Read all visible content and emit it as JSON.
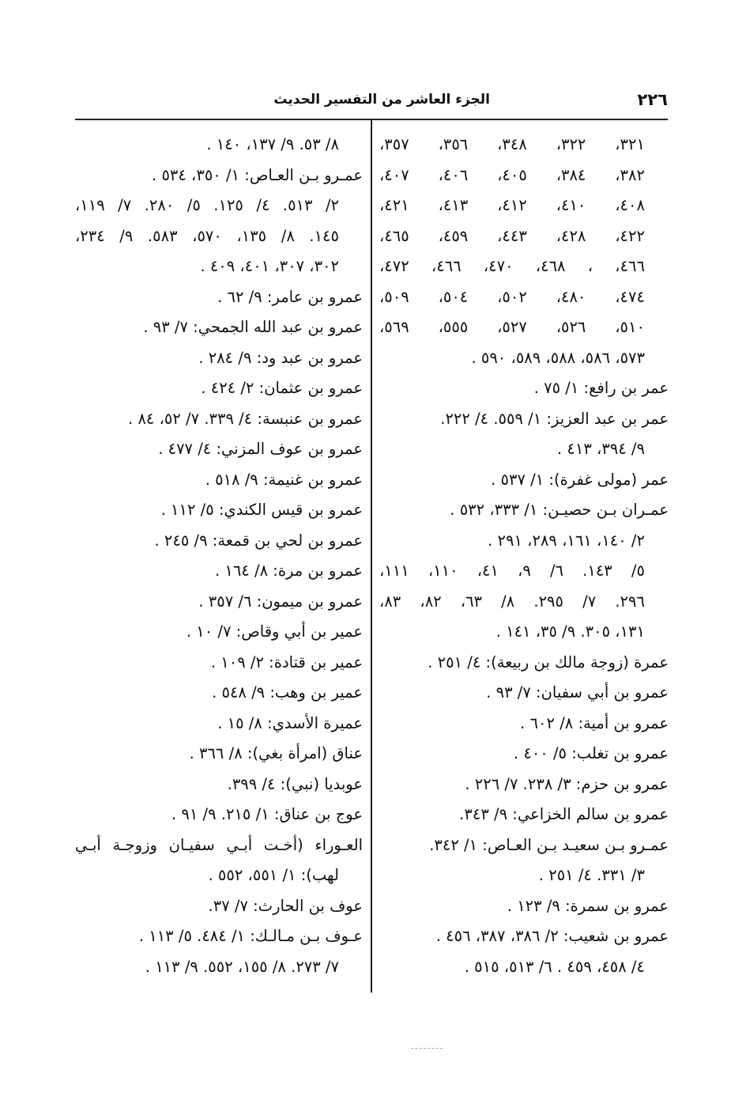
{
  "header": {
    "page_number": "٢٢٦",
    "running_title": "الجزء العاشر من التفسير الحديث"
  },
  "right_column": [
    {
      "text": "٣٢١، ٣٢٢، ٣٤٨، ٣٥٦، ٣٥٧،",
      "type": "continuation"
    },
    {
      "text": "٣٨٢، ٣٨٤، ٤٠٥، ٤٠٦، ٤٠٧،",
      "type": "continuation"
    },
    {
      "text": "٤٠٨، ٤١٠، ٤١٢، ٤١٣، ٤٢١،",
      "type": "continuation"
    },
    {
      "text": "٤٢٢، ٤٢٨، ٤٤٣، ٤٥٩، ٤٦٥،",
      "type": "continuation"
    },
    {
      "text": "٤٦٦، ، ٤٦٨، ٤٧٠، ٤٦٦، ٤٧٢،",
      "type": "continuation"
    },
    {
      "text": "٤٧٤، ٤٨٠، ٥٠٢، ٥٠٤، ٥٠٩،",
      "type": "continuation"
    },
    {
      "text": "٥١٠، ٥٢٦، ٥٢٧، ٥٥٥، ٥٦٩،",
      "type": "continuation"
    },
    {
      "text": "٥٧٣، ٥٨٦، ٥٨٨، ٥٨٩، ٥٩٠ .",
      "type": "continuation"
    },
    {
      "text": "عمر بن رافع: ١/ ٧٥ .",
      "type": "entry"
    },
    {
      "text": "عمر بن عبد العزيز: ١/ ٥٥٩. ٤/ ٢٢٢.",
      "type": "entry"
    },
    {
      "text": "٩/ ٣٩٤، ٤١٣ .",
      "type": "continuation"
    },
    {
      "text": "عمر (مولى غفرة): ١/ ٥٣٧ .",
      "type": "entry"
    },
    {
      "text": "عمـران بـن حصيـن: ١/ ٣٣٣، ٥٣٢ .",
      "type": "entry"
    },
    {
      "text": "٢/ ١٤٠، ١٦١، ٢٨٩، ٢٩١ .",
      "type": "continuation"
    },
    {
      "text": "٥/ ١٤٣. ٦/ ٩، ٤١، ١١٠، ١١١،",
      "type": "continuation"
    },
    {
      "text": "٢٩٦. ٧/ ٢٩٥. ٨/ ٦٣، ٨٢، ٨٣،",
      "type": "continuation"
    },
    {
      "text": "١٣١، ٣٠٥. ٩/ ٣٥، ١٤١ .",
      "type": "continuation"
    },
    {
      "text": "عمرة (زوجة مالك بن ربيعة): ٤/ ٢٥١ .",
      "type": "entry"
    },
    {
      "text": "عمرو بن أبي سفيان: ٧/ ٩٣ .",
      "type": "entry"
    },
    {
      "text": "عمرو بن أمية: ٨/ ٦٠٢ .",
      "type": "entry"
    },
    {
      "text": "عمرو بن تغلب: ٥/ ٤٠٠ .",
      "type": "entry"
    },
    {
      "text": "عمرو بن حزم: ٣/ ٢٣٨. ٧/ ٢٢٦ .",
      "type": "entry"
    },
    {
      "text": "عمرو بن سالم الخزاعي: ٩/ ٣٤٣.",
      "type": "entry"
    },
    {
      "text": "عمـرو بـن سعيـد بـن العـاص: ١/ ٣٤٢.",
      "type": "entry"
    },
    {
      "text": "٣/ ٣٣١. ٤/ ٢٥١ .",
      "type": "continuation"
    },
    {
      "text": "عمرو بن سمرة: ٩/ ١٢٣ .",
      "type": "entry"
    },
    {
      "text": "عمرو بن شعيب: ٢/ ٣٨٦، ٣٨٧، ٤٥٦ .",
      "type": "entry"
    },
    {
      "text": "٤/ ٤٥٨، ٤٥٩ . ٦/ ٥١٣، ٥١٥ .",
      "type": "continuation"
    }
  ],
  "left_column": [
    {
      "text": "٨/ ٥٣. ٩/ ١٣٧، ١٤٠ .",
      "type": "continuation"
    },
    {
      "text": "عمـرو بـن العـاص: ١/ ٣٥٠، ٥٣٤ .",
      "type": "entry"
    },
    {
      "text": "٢/ ٥١٣. ٤/ ١٢٥. ٥/ ٢٨٠. ٧/ ١١٩،",
      "type": "continuation"
    },
    {
      "text": "١٤٥. ٨/ ١٣٥، ٥٧٠، ٥٨٣. ٩/ ٢٣٤،",
      "type": "continuation"
    },
    {
      "text": "٣٠٢، ٣٠٧، ٤٠١، ٤٠٩ .",
      "type": "continuation"
    },
    {
      "text": "عمرو بن عامر: ٩/ ٦٢ .",
      "type": "entry"
    },
    {
      "text": "عمرو بن عبد الله الجمحي: ٧/ ٩٣ .",
      "type": "entry"
    },
    {
      "text": "عمرو بن عبد ود: ٩/ ٢٨٤ .",
      "type": "entry"
    },
    {
      "text": "عمرو بن عثمان: ٢/ ٤٢٤ .",
      "type": "entry"
    },
    {
      "text": "عمرو بن عنبسة: ٤/ ٣٣٩. ٧/ ٥٢، ٨٤ .",
      "type": "entry"
    },
    {
      "text": "عمرو بن عوف المزني: ٤/ ٤٧٧ .",
      "type": "entry"
    },
    {
      "text": "عمرو بن غنيمة: ٩/ ٥١٨ .",
      "type": "entry"
    },
    {
      "text": "عمرو بن قيس الكندي: ٥/ ١١٢ .",
      "type": "entry"
    },
    {
      "text": "عمرو بن لحي بن قمعة: ٩/ ٢٤٥ .",
      "type": "entry"
    },
    {
      "text": "عمرو بن مرة: ٨/ ١٦٤ .",
      "type": "entry"
    },
    {
      "text": "عمرو بن ميمون: ٦/ ٣٥٧ .",
      "type": "entry"
    },
    {
      "text": "عمير بن أبي وقاص: ٧/ ١٠ .",
      "type": "entry"
    },
    {
      "text": "عمير بن قتادة: ٢/ ١٠٩ .",
      "type": "entry"
    },
    {
      "text": "عمير بن وهب: ٩/ ٥٤٨ .",
      "type": "entry"
    },
    {
      "text": "عميرة الأسدي: ٨/ ١٥ .",
      "type": "entry"
    },
    {
      "text": "عناق (امرأة بغي): ٨/ ٣٦٦ .",
      "type": "entry"
    },
    {
      "text": "عوبديا (نبي): ٤/ ٣٩٩.",
      "type": "entry"
    },
    {
      "text": "عوج بن عناق: ١/ ٢١٥. ٩/ ٩١ .",
      "type": "entry"
    },
    {
      "text": "العـوراء (أخـت أبـي سفيـان وزوجـة أبـي",
      "type": "entry"
    },
    {
      "text": "لهب): ١/ ٥٥١، ٥٥٢ .",
      "type": "continuation"
    },
    {
      "text": "عوف بن الحارث: ٧/ ٣٧.",
      "type": "entry"
    },
    {
      "text": "عـوف بـن مـالـك: ١/ ٤٨٤. ٥/ ١١٣ .",
      "type": "entry"
    },
    {
      "text": "٧/ ٢٧٣. ٨/ ١٥٥، ٥٥٢. ٩/ ١١٣ .",
      "type": "continuation"
    }
  ]
}
